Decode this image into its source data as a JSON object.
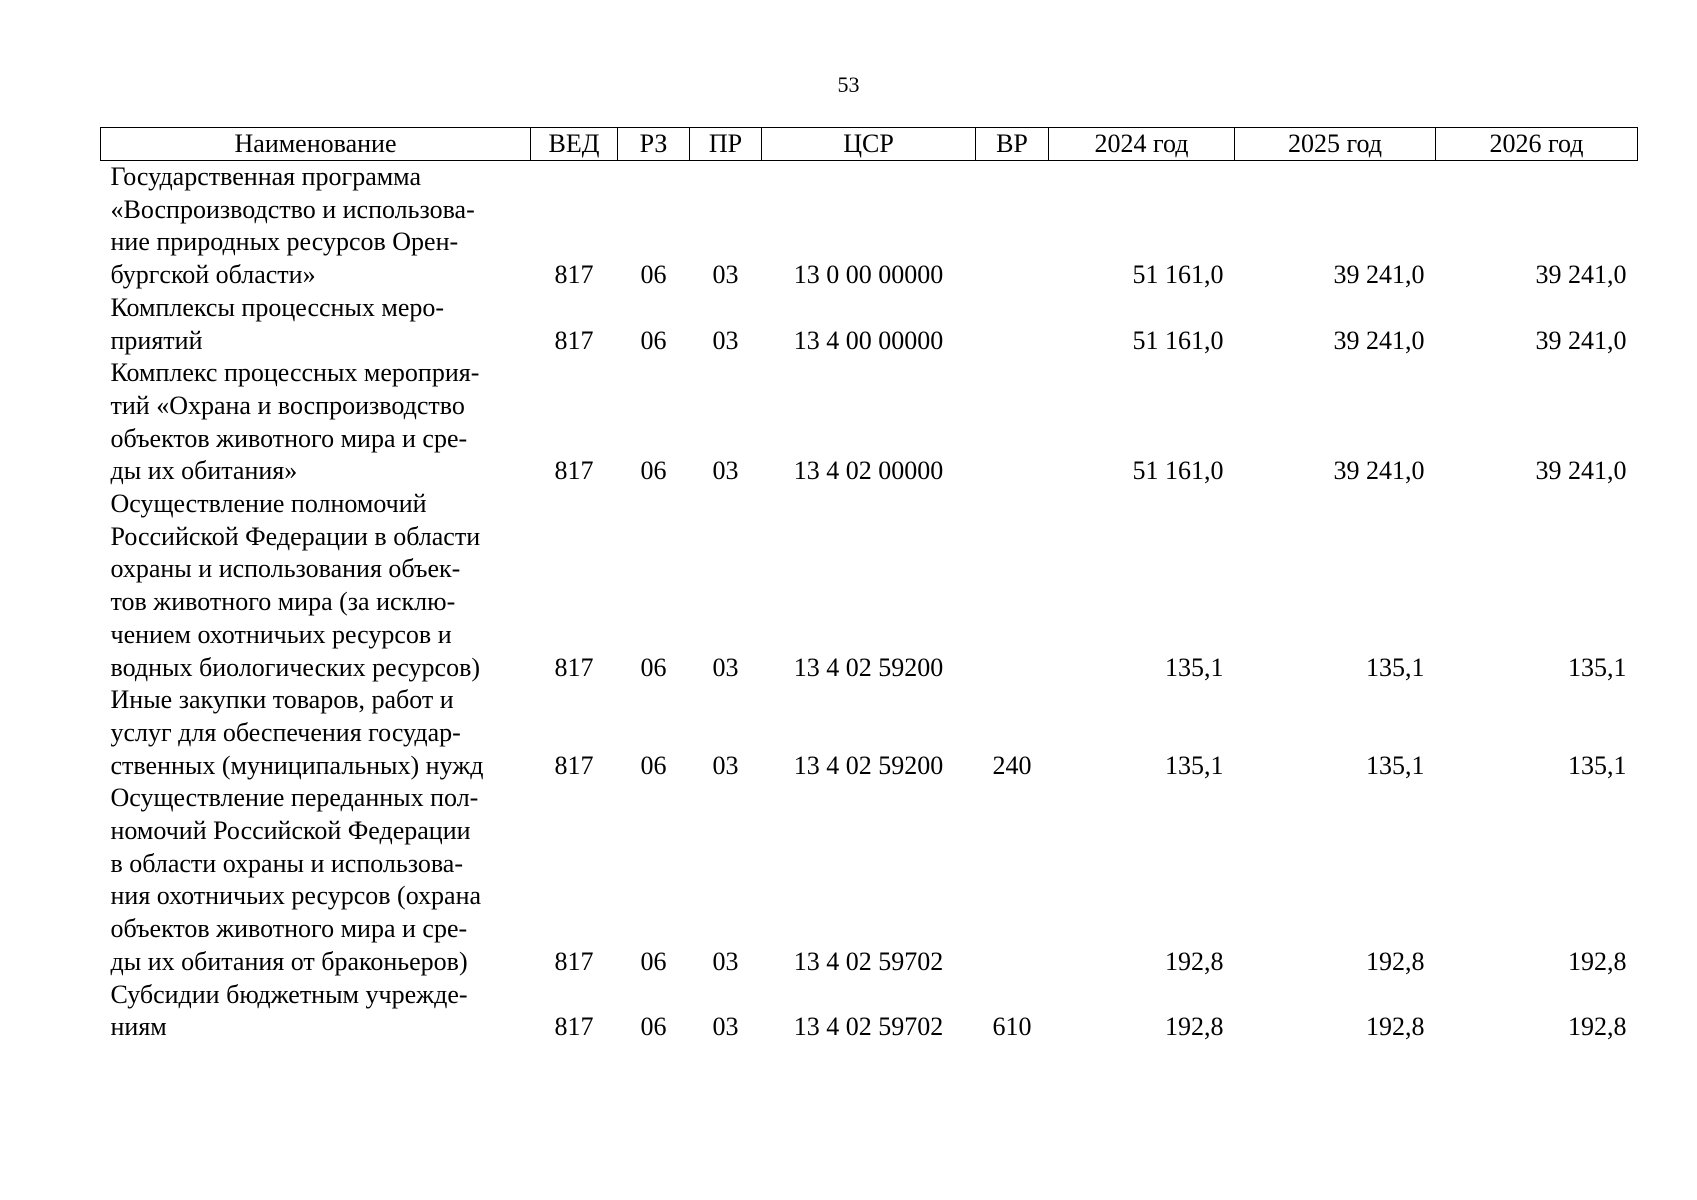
{
  "page_number": "53",
  "table": {
    "headers": [
      "Наименование",
      "ВЕД",
      "РЗ",
      "ПР",
      "ЦСР",
      "ВР",
      "2024 год",
      "2025 год",
      "2026 год"
    ],
    "rows": [
      {
        "name_lines": [
          "Государственная программа",
          "«Воспроизводство и использова-",
          "ние природных ресурсов Орен-",
          "бургской области»"
        ],
        "ved": "817",
        "rz": "06",
        "pr": "03",
        "csr": "13 0 00 00000",
        "vr": "",
        "y2024": "51 161,0",
        "y2025": "39 241,0",
        "y2026": "39 241,0"
      },
      {
        "name_lines": [
          "Комплексы процессных меро-",
          "приятий"
        ],
        "ved": "817",
        "rz": "06",
        "pr": "03",
        "csr": "13 4 00 00000",
        "vr": "",
        "y2024": "51 161,0",
        "y2025": "39 241,0",
        "y2026": "39 241,0"
      },
      {
        "name_lines": [
          "Комплекс процессных мероприя-",
          "тий «Охрана и воспроизводство",
          "объектов животного мира и сре-",
          "ды их обитания»"
        ],
        "ved": "817",
        "rz": "06",
        "pr": "03",
        "csr": "13 4 02 00000",
        "vr": "",
        "y2024": "51 161,0",
        "y2025": "39 241,0",
        "y2026": "39 241,0"
      },
      {
        "name_lines": [
          "Осуществление полномочий",
          "Российской Федерации в области",
          "охраны и использования объек-",
          "тов животного мира (за исклю-",
          "чением охотничьих ресурсов и",
          "водных биологических ресурсов)"
        ],
        "ved": "817",
        "rz": "06",
        "pr": "03",
        "csr": "13 4 02 59200",
        "vr": "",
        "y2024": "135,1",
        "y2025": "135,1",
        "y2026": "135,1"
      },
      {
        "name_lines": [
          "Иные закупки товаров, работ и",
          "услуг для обеспечения государ-",
          "ственных (муниципальных) нужд"
        ],
        "ved": "817",
        "rz": "06",
        "pr": "03",
        "csr": "13 4 02 59200",
        "vr": "240",
        "y2024": "135,1",
        "y2025": "135,1",
        "y2026": "135,1"
      },
      {
        "name_lines": [
          "Осуществление переданных пол-",
          "номочий Российской Федерации",
          "в области охраны и использова-",
          "ния охотничьих ресурсов (охрана",
          "объектов животного мира и сре-",
          "ды их обитания от браконьеров)"
        ],
        "ved": "817",
        "rz": "06",
        "pr": "03",
        "csr": "13 4 02 59702",
        "vr": "",
        "y2024": "192,8",
        "y2025": "192,8",
        "y2026": "192,8"
      },
      {
        "name_lines": [
          "Субсидии бюджетным учрежде-",
          "ниям"
        ],
        "ved": "817",
        "rz": "06",
        "pr": "03",
        "csr": "13 4 02 59702",
        "vr": "610",
        "y2024": "192,8",
        "y2025": "192,8",
        "y2026": "192,8"
      }
    ]
  }
}
